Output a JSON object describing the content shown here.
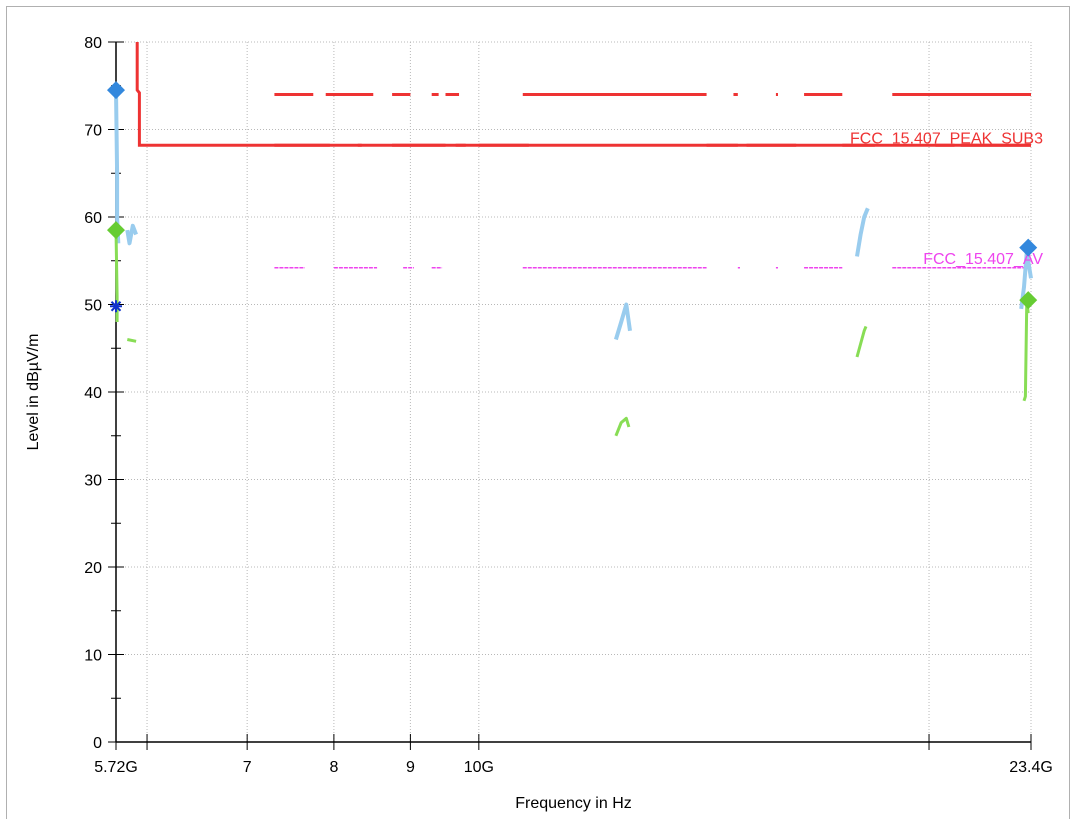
{
  "chart_data": {
    "type": "line",
    "xlabel": "Frequency in Hz",
    "ylabel": "Level in dBµV/m",
    "x_scale": "log",
    "xlim": [
      5.72,
      23.4
    ],
    "ylim": [
      0,
      80
    ],
    "grid": true,
    "x_tick_labels": [
      {
        "value": 5.72,
        "label": "5.72G"
      },
      {
        "value": 7,
        "label": "7"
      },
      {
        "value": 8,
        "label": "8"
      },
      {
        "value": 9,
        "label": "9"
      },
      {
        "value": 10,
        "label": "10G"
      },
      {
        "value": 23.4,
        "label": "23.4G"
      }
    ],
    "x_minor_ticks": [
      6,
      20
    ],
    "y_ticks": [
      0,
      10,
      20,
      30,
      40,
      50,
      60,
      70,
      80
    ],
    "limit_labels": {
      "peak": "FCC_15.407_PEAK_SUB3",
      "avg": "FCC_15.407_AV"
    },
    "colors": {
      "peak_limit": "#ee3333",
      "avg_limit": "#ee44ee",
      "peak_trace": "#99ccee",
      "avg_trace": "#88dd55",
      "peak_marker": "#3388dd",
      "avg_marker": "#66cc33",
      "star_marker": "#1133cc"
    },
    "series": [
      {
        "role": "peak_limit",
        "segments": [
          [
            [
              5.91,
              80
            ],
            [
              5.91,
              74.5
            ],
            [
              5.93,
              74.2
            ],
            [
              5.93,
              68.2
            ],
            [
              23.4,
              68.2
            ]
          ]
        ]
      },
      {
        "role": "peak_limit_dashed",
        "ranges": [
          [
            7.3,
            7.75
          ],
          [
            7.9,
            8.5
          ],
          [
            8.75,
            9.0
          ],
          [
            9.3,
            9.4
          ],
          [
            9.5,
            9.7
          ],
          [
            10.7,
            14.2
          ],
          [
            14.8,
            14.9
          ],
          [
            15.8,
            15.85
          ],
          [
            16.5,
            17.5
          ],
          [
            18.9,
            23.4
          ]
        ],
        "y": 74
      },
      {
        "role": "peak_limit_dashed",
        "ranges": [
          [
            7.3,
            7.95
          ],
          [
            8.3,
            8.35
          ],
          [
            8.75,
            9.5
          ],
          [
            9.65,
            9.8
          ],
          [
            10.0,
            10.8
          ],
          [
            14.2,
            14.9
          ],
          [
            15.1,
            16.3
          ],
          [
            17.5,
            18.4
          ],
          [
            20.2,
            20.8
          ],
          [
            21.0,
            23.4
          ]
        ],
        "y": 68.2
      },
      {
        "role": "avg_limit",
        "ranges": [
          [
            7.3,
            7.65
          ],
          [
            8.0,
            8.55
          ],
          [
            8.9,
            9.05
          ],
          [
            9.3,
            9.45
          ],
          [
            10.7,
            14.2
          ],
          [
            14.9,
            14.95
          ],
          [
            15.8,
            15.85
          ],
          [
            16.5,
            17.5
          ],
          [
            18.9,
            23.4
          ]
        ],
        "y": 54.2
      },
      {
        "role": "peak_trace",
        "segments": [
          [
            [
              5.72,
              74.5
            ],
            [
              5.73,
              65
            ],
            [
              5.73,
              60
            ],
            [
              5.74,
              57
            ]
          ],
          [
            [
              5.82,
              58.5
            ],
            [
              5.84,
              57
            ],
            [
              5.87,
              59
            ],
            [
              5.9,
              58
            ]
          ],
          [
            [
              12.35,
              46
            ],
            [
              12.45,
              48
            ],
            [
              12.55,
              50
            ],
            [
              12.62,
              47
            ]
          ],
          [
            [
              17.9,
              55.5
            ],
            [
              18.0,
              58
            ],
            [
              18.1,
              60
            ],
            [
              18.2,
              61
            ]
          ],
          [
            [
              23.05,
              49.5
            ],
            [
              23.15,
              52
            ],
            [
              23.25,
              56
            ],
            [
              23.4,
              53
            ]
          ]
        ]
      },
      {
        "role": "avg_trace",
        "segments": [
          [
            [
              5.72,
              58.5
            ],
            [
              5.73,
              51
            ],
            [
              5.73,
              48
            ]
          ],
          [
            [
              5.82,
              46
            ],
            [
              5.9,
              45.8
            ]
          ],
          [
            [
              12.35,
              35
            ],
            [
              12.45,
              36.5
            ],
            [
              12.55,
              37
            ],
            [
              12.6,
              36
            ]
          ],
          [
            [
              17.9,
              44
            ],
            [
              18.0,
              45.5
            ],
            [
              18.1,
              47
            ],
            [
              18.15,
              47.5
            ]
          ],
          [
            [
              23.15,
              39
            ],
            [
              23.2,
              39.5
            ],
            [
              23.25,
              50.5
            ],
            [
              23.3,
              49
            ]
          ]
        ]
      }
    ],
    "markers": [
      {
        "type": "peak",
        "x": 5.72,
        "y": 74.5
      },
      {
        "type": "avg",
        "x": 5.72,
        "y": 58.5
      },
      {
        "type": "star",
        "x": 5.72,
        "y": 49.8
      },
      {
        "type": "peak",
        "x": 23.3,
        "y": 56.5
      },
      {
        "type": "avg",
        "x": 23.3,
        "y": 50.5
      }
    ]
  }
}
